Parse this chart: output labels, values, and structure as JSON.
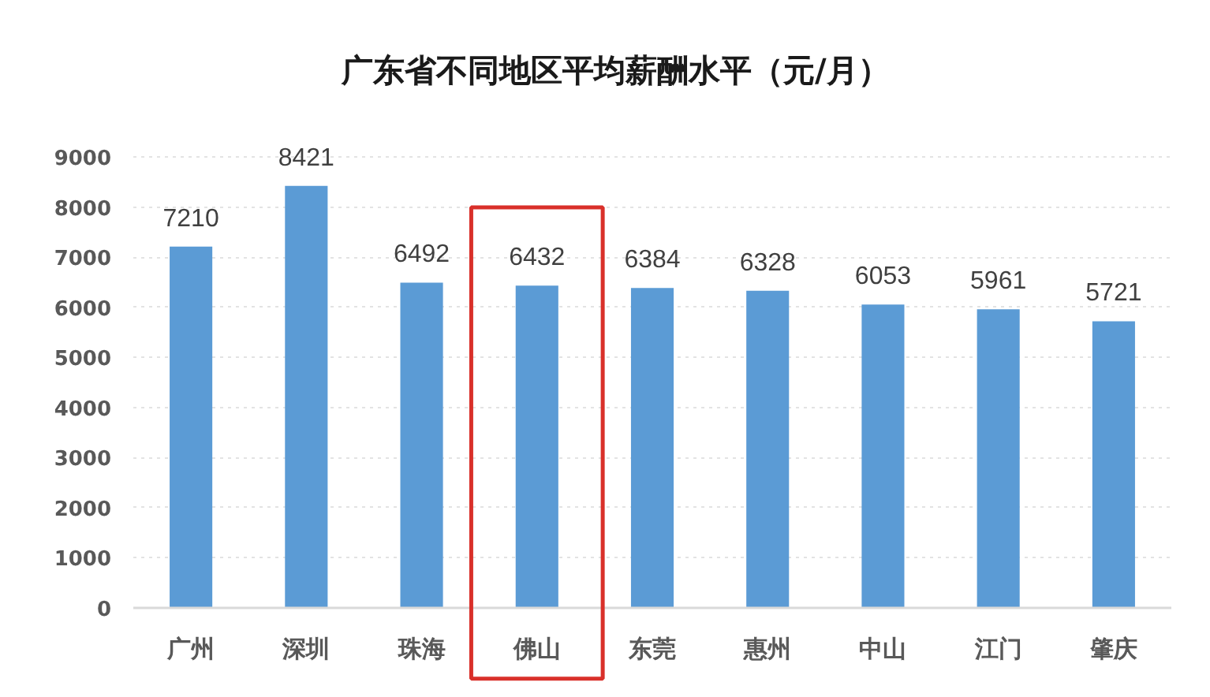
{
  "chart_data": {
    "type": "bar",
    "title": "广东省不同地区平均薪酬水平（元/月）",
    "categories": [
      "广州",
      "深圳",
      "珠海",
      "佛山",
      "东莞",
      "惠州",
      "中山",
      "江门",
      "肇庆"
    ],
    "values": [
      7210,
      8421,
      6492,
      6432,
      6384,
      6328,
      6053,
      5961,
      5721
    ],
    "color": "#5b9bd5",
    "ylim": [
      0,
      9000
    ],
    "yticks": [
      0,
      1000,
      2000,
      3000,
      4000,
      5000,
      6000,
      7000,
      8000,
      9000
    ],
    "grid": "y",
    "data_labels": true
  }
}
